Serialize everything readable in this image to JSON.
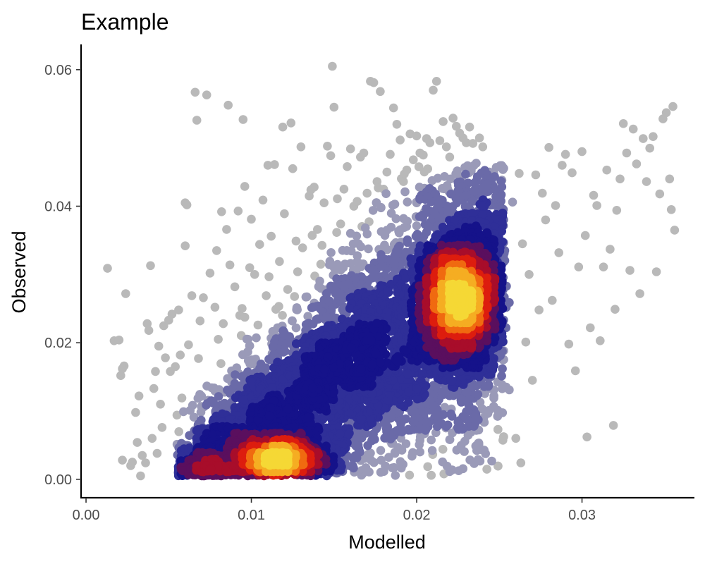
{
  "chart_data": {
    "type": "scatter",
    "title": "Example",
    "xlabel": "Modelled",
    "ylabel": "Observed",
    "xlim": [
      -0.0003,
      0.0368
    ],
    "ylim": [
      -0.0027,
      0.0637
    ],
    "x_ticks": [
      0.0,
      0.01,
      0.02,
      0.03
    ],
    "x_tick_labels": [
      "0.00",
      "0.01",
      "0.02",
      "0.03"
    ],
    "y_ticks": [
      0.0,
      0.02,
      0.04,
      0.06
    ],
    "y_tick_labels": [
      "0.00",
      "0.02",
      "0.04",
      "0.06"
    ],
    "grid": false,
    "legend": "none",
    "color_encoding": "point density",
    "color_scale": [
      "#b9b9b9",
      "#9a9ab8",
      "#6a6aa8",
      "#2f2f98",
      "#15128a",
      "#5a0f5e",
      "#a80d2a",
      "#dd1d0e",
      "#f06a10",
      "#f5ad22",
      "#f5d835"
    ],
    "series": [
      {
        "points": [
          [
            0.0013,
            0.0309
          ],
          [
            0.0017,
            0.0203
          ],
          [
            0.002,
            0.0204
          ],
          [
            0.0021,
            0.0152
          ],
          [
            0.0022,
            0.0162
          ],
          [
            0.0023,
            0.0166
          ],
          [
            0.0022,
            0.0028
          ],
          [
            0.0024,
            0.0272
          ],
          [
            0.0027,
            0.002
          ],
          [
            0.0028,
            0.0025
          ],
          [
            0.003,
            0.0098
          ],
          [
            0.0031,
            0.0054
          ],
          [
            0.0032,
            0.0122
          ],
          [
            0.0033,
            0.0005
          ],
          [
            0.0034,
            0.0035
          ],
          [
            0.0036,
            0.0024
          ],
          [
            0.0037,
            0.0228
          ],
          [
            0.0038,
            0.0218
          ],
          [
            0.0039,
            0.0313
          ],
          [
            0.004,
            0.006
          ],
          [
            0.0041,
            0.0133
          ],
          [
            0.0042,
            0.0158
          ],
          [
            0.0043,
            0.0038
          ],
          [
            0.0044,
            0.0195
          ],
          [
            0.0045,
            0.011
          ],
          [
            0.0046,
            0.0076
          ],
          [
            0.0047,
            0.0225
          ],
          [
            0.0048,
            0.0178
          ],
          [
            0.005,
            0.0233
          ],
          [
            0.0051,
            0.0158
          ],
          [
            0.0052,
            0.0242
          ],
          [
            0.0054,
            0.0165
          ],
          [
            0.0055,
            0.0094
          ],
          [
            0.0056,
            0.0248
          ],
          [
            0.0057,
            0.0182
          ],
          [
            0.0058,
            0.0119
          ],
          [
            0.006,
            0.0405
          ],
          [
            0.006,
            0.0342
          ],
          [
            0.0061,
            0.0402
          ],
          [
            0.0062,
            0.0197
          ],
          [
            0.0063,
            0.0101
          ],
          [
            0.0064,
            0.0269
          ],
          [
            0.0066,
            0.0567
          ],
          [
            0.0067,
            0.0526
          ],
          [
            0.0068,
            0.0177
          ],
          [
            0.0069,
            0.0232
          ],
          [
            0.007,
            0.0062
          ],
          [
            0.0071,
            0.0266
          ],
          [
            0.0073,
            0.0563
          ],
          [
            0.0075,
            0.0302
          ],
          [
            0.0076,
            0.0134
          ],
          [
            0.0078,
            0.0252
          ],
          [
            0.0079,
            0.0335
          ],
          [
            0.008,
            0.0205
          ],
          [
            0.0082,
            0.0392
          ],
          [
            0.0083,
            0.0228
          ],
          [
            0.0085,
            0.0366
          ],
          [
            0.0086,
            0.0548
          ],
          [
            0.0087,
            0.0314
          ],
          [
            0.0088,
            0.0145
          ],
          [
            0.009,
            0.0282
          ],
          [
            0.0092,
            0.0393
          ],
          [
            0.0093,
            0.024
          ],
          [
            0.0095,
            0.0527
          ],
          [
            0.0096,
            0.0429
          ],
          [
            0.0098,
            0.0205
          ],
          [
            0.0099,
            0.031
          ],
          [
            0.01,
            0.0381
          ],
          [
            0.0102,
            0.03
          ],
          [
            0.0104,
            0.0226
          ],
          [
            0.0105,
            0.0344
          ],
          [
            0.0107,
            0.0409
          ],
          [
            0.0109,
            0.0269
          ],
          [
            0.011,
            0.046
          ],
          [
            0.0112,
            0.0356
          ],
          [
            0.0114,
            0.0461
          ],
          [
            0.0115,
            0.0206
          ],
          [
            0.0117,
            0.0319
          ],
          [
            0.0119,
            0.0516
          ],
          [
            0.012,
            0.0389
          ],
          [
            0.0122,
            0.0278
          ],
          [
            0.0124,
            0.0522
          ],
          [
            0.0125,
            0.0455
          ],
          [
            0.0127,
            0.0349
          ],
          [
            0.0128,
            0.0304
          ],
          [
            0.013,
            0.0487
          ],
          [
            0.0131,
            0.0339
          ],
          [
            0.0133,
            0.0267
          ],
          [
            0.0135,
            0.0415
          ],
          [
            0.0136,
            0.0424
          ],
          [
            0.0138,
            0.0428
          ],
          [
            0.014,
            0.0366
          ],
          [
            0.0142,
            0.0315
          ],
          [
            0.0144,
            0.0405
          ],
          [
            0.0146,
            0.0488
          ],
          [
            0.0148,
            0.0474
          ],
          [
            0.0149,
            0.0605
          ],
          [
            0.015,
            0.0545
          ],
          [
            0.0152,
            0.0411
          ],
          [
            0.0154,
            0.0374
          ],
          [
            0.0156,
            0.0425
          ],
          [
            0.0158,
            0.0458
          ],
          [
            0.016,
            0.0484
          ],
          [
            0.0162,
            0.04
          ],
          [
            0.0164,
            0.0407
          ],
          [
            0.0166,
            0.0472
          ],
          [
            0.0168,
            0.0478
          ],
          [
            0.017,
            0.0419
          ],
          [
            0.0172,
            0.0583
          ],
          [
            0.0174,
            0.0581
          ],
          [
            0.0176,
            0.0436
          ],
          [
            0.0178,
            0.0568
          ],
          [
            0.018,
            0.0425
          ],
          [
            0.0182,
            0.045
          ],
          [
            0.0184,
            0.0476
          ],
          [
            0.0186,
            0.0544
          ],
          [
            0.0188,
            0.052
          ],
          [
            0.019,
            0.0497
          ],
          [
            0.0192,
            0.0436
          ],
          [
            0.0194,
            0.0453
          ],
          [
            0.0196,
            0.0506
          ],
          [
            0.0198,
            0.0468
          ],
          [
            0.02,
            0.0503
          ],
          [
            0.0202,
            0.0478
          ],
          [
            0.0204,
            0.0475
          ],
          [
            0.0206,
            0.0499
          ],
          [
            0.0208,
            0.0493
          ],
          [
            0.021,
            0.057
          ],
          [
            0.0212,
            0.0583
          ],
          [
            0.0214,
            0.0496
          ],
          [
            0.0216,
            0.0524
          ],
          [
            0.0218,
            0.0487
          ],
          [
            0.022,
            0.0472
          ],
          [
            0.0222,
            0.0529
          ],
          [
            0.0224,
            0.0517
          ],
          [
            0.0226,
            0.0507
          ],
          [
            0.0228,
            0.05
          ],
          [
            0.023,
            0.0493
          ],
          [
            0.0232,
            0.0516
          ],
          [
            0.0234,
            0.0492
          ],
          [
            0.0236,
            0.0463
          ],
          [
            0.0238,
            0.05
          ],
          [
            0.024,
            0.0487
          ],
          [
            0.0242,
            0.0421
          ],
          [
            0.0244,
            0.045
          ],
          [
            0.0246,
            0.0231
          ],
          [
            0.0248,
            0.0403
          ],
          [
            0.025,
            0.0378
          ],
          [
            0.0252,
            0.039
          ],
          [
            0.0254,
            0.0222
          ],
          [
            0.0256,
            0.0131
          ],
          [
            0.0258,
            0.0406
          ],
          [
            0.026,
            0.006
          ],
          [
            0.0262,
            0.0448
          ],
          [
            0.0263,
            0.0024
          ],
          [
            0.0264,
            0.0345
          ],
          [
            0.0266,
            0.0201
          ],
          [
            0.0268,
            0.03
          ],
          [
            0.027,
            0.0145
          ],
          [
            0.0272,
            0.0446
          ],
          [
            0.0274,
            0.0248
          ],
          [
            0.0276,
            0.0419
          ],
          [
            0.0278,
            0.038
          ],
          [
            0.028,
            0.0486
          ],
          [
            0.0282,
            0.0262
          ],
          [
            0.0284,
            0.0401
          ],
          [
            0.0286,
            0.0332
          ],
          [
            0.0288,
            0.046
          ],
          [
            0.029,
            0.0476
          ],
          [
            0.0292,
            0.0198
          ],
          [
            0.0294,
            0.0449
          ],
          [
            0.0296,
            0.0159
          ],
          [
            0.0298,
            0.0311
          ],
          [
            0.03,
            0.048
          ],
          [
            0.0302,
            0.0357
          ],
          [
            0.0303,
            0.0062
          ],
          [
            0.0305,
            0.0222
          ],
          [
            0.0307,
            0.0416
          ],
          [
            0.0309,
            0.0401
          ],
          [
            0.0311,
            0.0203
          ],
          [
            0.0313,
            0.0311
          ],
          [
            0.0315,
            0.0453
          ],
          [
            0.0317,
            0.0337
          ],
          [
            0.0319,
            0.0079
          ],
          [
            0.032,
            0.0249
          ],
          [
            0.0321,
            0.0394
          ],
          [
            0.0323,
            0.044
          ],
          [
            0.0325,
            0.0521
          ],
          [
            0.0327,
            0.0478
          ],
          [
            0.0329,
            0.0306
          ],
          [
            0.0331,
            0.0513
          ],
          [
            0.0333,
            0.0462
          ],
          [
            0.0335,
            0.0272
          ],
          [
            0.0337,
            0.0499
          ],
          [
            0.0339,
            0.0436
          ],
          [
            0.0341,
            0.0485
          ],
          [
            0.0343,
            0.0502
          ],
          [
            0.0345,
            0.0304
          ],
          [
            0.0347,
            0.0418
          ],
          [
            0.0349,
            0.0528
          ],
          [
            0.0351,
            0.0537
          ],
          [
            0.0353,
            0.044
          ],
          [
            0.0354,
            0.0395
          ],
          [
            0.0355,
            0.0546
          ],
          [
            0.0356,
            0.0365
          ]
        ]
      }
    ],
    "density_cloud": {
      "note_points": "dense cloud of points along a diagonal band, hottest around x 0.022–0.023, y 0.024–0.028; secondary hot spot at x 0.012, y 0.003",
      "main_band": {
        "x_range": [
          0.005,
          0.0255
        ],
        "y_range": [
          0.0005,
          0.046
        ]
      },
      "peak_1": [
        0.0226,
        0.0265
      ],
      "peak_2": [
        0.0118,
        0.003
      ]
    }
  }
}
